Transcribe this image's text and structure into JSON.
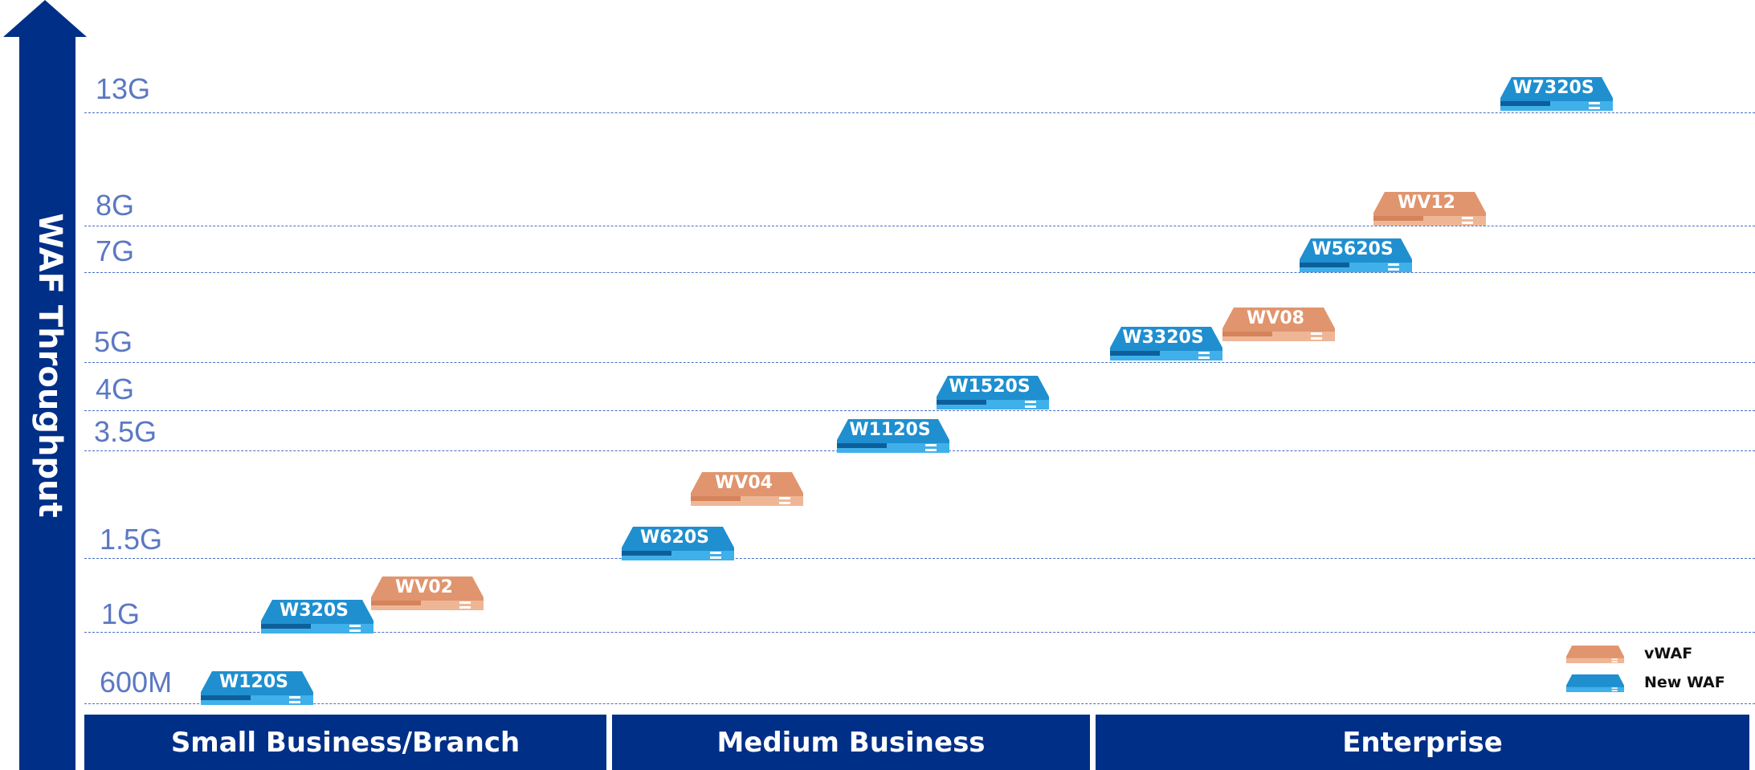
{
  "y_axis": {
    "label": "WAF Throughput",
    "ticks": [
      "600M",
      "1G",
      "1.5G",
      "3.5G",
      "4G",
      "5G",
      "7G",
      "8G",
      "13G"
    ]
  },
  "segments": [
    "Small Business/Branch",
    "Medium Business",
    "Enterprise"
  ],
  "devices": [
    {
      "name": "W120S",
      "type": "New WAF",
      "segment": "Small Business/Branch",
      "throughput": "600M"
    },
    {
      "name": "W320S",
      "type": "New WAF",
      "segment": "Small Business/Branch",
      "throughput": "1G"
    },
    {
      "name": "WV02",
      "type": "vWAF",
      "segment": "Small Business/Branch",
      "throughput": "1G"
    },
    {
      "name": "W620S",
      "type": "New WAF",
      "segment": "Medium Business",
      "throughput": "1.5G"
    },
    {
      "name": "WV04",
      "type": "vWAF",
      "segment": "Medium Business"
    },
    {
      "name": "W1120S",
      "type": "New WAF",
      "segment": "Medium Business",
      "throughput": "3.5G"
    },
    {
      "name": "W1520S",
      "type": "New WAF",
      "segment": "Medium Business",
      "throughput": "4G"
    },
    {
      "name": "W3320S",
      "type": "New WAF",
      "segment": "Enterprise",
      "throughput": "5G"
    },
    {
      "name": "WV08",
      "type": "vWAF",
      "segment": "Enterprise"
    },
    {
      "name": "W5620S",
      "type": "New WAF",
      "segment": "Enterprise",
      "throughput": "7G"
    },
    {
      "name": "WV12",
      "type": "vWAF",
      "segment": "Enterprise",
      "throughput": "8G"
    },
    {
      "name": "W7320S",
      "type": "New WAF",
      "segment": "Enterprise",
      "throughput": "13G"
    }
  ],
  "legend": [
    {
      "label": "vWAF",
      "color": "#e0956e"
    },
    {
      "label": "New WAF",
      "color": "#1f8fcf"
    }
  ],
  "colors": {
    "axis": "#002f87",
    "gridline": "#4a6ec1",
    "tick_text": "#5b78c2",
    "new_waf": "#1f8fcf",
    "vwaf": "#e0956e"
  }
}
